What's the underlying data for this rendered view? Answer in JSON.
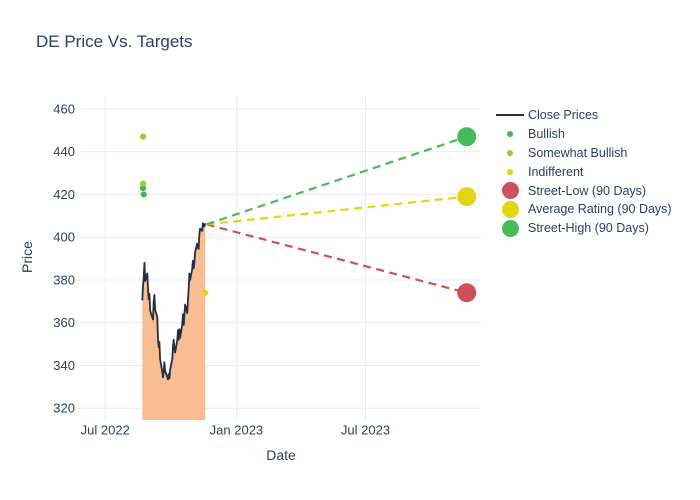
{
  "chart": {
    "title": "DE Price Vs. Targets",
    "xaxis": {
      "title": "Date",
      "tick_labels": [
        "Jul 2022",
        "Jan 2023",
        "Jul 2023"
      ],
      "tick_dates": [
        "2022-07-01",
        "2023-01-01",
        "2023-07-01"
      ],
      "range": [
        "2022-05-28",
        "2023-12-10"
      ]
    },
    "yaxis": {
      "title": "Price",
      "ticks": [
        320,
        340,
        360,
        380,
        400,
        420,
        440,
        460
      ],
      "range": [
        314.5,
        466.5
      ]
    },
    "colors": {
      "background": "#ffffff",
      "grid": "#e8ecf3",
      "text": "#2a3f5f",
      "close_line": "#222f44",
      "close_fill": "#f9bc93",
      "bullish": "#46b552",
      "somewhat_bullish": "#9acd32",
      "indifferent": "#e4d60d",
      "street_low": "#cf4f5c",
      "average_rating": "#ded70f",
      "street_high": "#47bb59"
    },
    "legend": [
      {
        "label": "Close Prices",
        "slug": "close-prices",
        "type": "line",
        "color": "#222f44"
      },
      {
        "label": "Bullish",
        "slug": "bullish",
        "type": "dot",
        "color": "#46b552",
        "size": 6.5
      },
      {
        "label": "Somewhat Bullish",
        "slug": "somewhat-bullish",
        "type": "dot",
        "color": "#9acd32",
        "size": 6.5
      },
      {
        "label": "Indifferent",
        "slug": "indifferent",
        "type": "dot",
        "color": "#e4d60d",
        "size": 6.5
      },
      {
        "label": "Street-Low (90 Days)",
        "slug": "street-low",
        "type": "dot",
        "color": "#cf4f5c",
        "size": 17
      },
      {
        "label": "Average Rating (90 Days)",
        "slug": "average-rating",
        "type": "dot",
        "color": "#ded70f",
        "size": 17
      },
      {
        "label": "Street-High (90 Days)",
        "slug": "street-high",
        "type": "dot",
        "color": "#47bb59",
        "size": 17
      }
    ]
  },
  "chart_data": {
    "type": "line",
    "title": "DE Price Vs. Targets",
    "xlabel": "Date",
    "ylabel": "Price",
    "ylim": [
      314.5,
      466.5
    ],
    "grid": true,
    "legend_position": "right",
    "close_prices": {
      "name": "Close Prices",
      "dates": [
        "2022-08-22",
        "2022-08-23",
        "2022-08-24",
        "2022-08-25",
        "2022-08-26",
        "2022-08-29",
        "2022-08-30",
        "2022-08-31",
        "2022-09-01",
        "2022-09-02",
        "2022-09-06",
        "2022-09-07",
        "2022-09-08",
        "2022-09-09",
        "2022-09-12",
        "2022-09-13",
        "2022-09-14",
        "2022-09-15",
        "2022-09-16",
        "2022-09-19",
        "2022-09-20",
        "2022-09-21",
        "2022-09-22",
        "2022-09-23",
        "2022-09-26",
        "2022-09-27",
        "2022-09-28",
        "2022-09-29",
        "2022-09-30",
        "2022-10-03",
        "2022-10-04",
        "2022-10-05",
        "2022-10-06",
        "2022-10-07",
        "2022-10-10",
        "2022-10-11",
        "2022-10-12",
        "2022-10-13",
        "2022-10-14",
        "2022-10-17",
        "2022-10-18",
        "2022-10-19",
        "2022-10-20",
        "2022-10-21",
        "2022-10-24",
        "2022-10-25",
        "2022-10-26",
        "2022-10-27",
        "2022-10-28",
        "2022-10-31",
        "2022-11-01",
        "2022-11-02",
        "2022-11-03",
        "2022-11-04",
        "2022-11-07",
        "2022-11-08",
        "2022-11-09",
        "2022-11-10",
        "2022-11-11",
        "2022-11-14",
        "2022-11-15",
        "2022-11-16",
        "2022-11-17",
        "2022-11-18"
      ],
      "values": [
        370.5,
        377,
        381,
        388,
        379.5,
        383,
        376,
        371,
        373.5,
        365.5,
        361.5,
        370,
        373,
        366,
        362.5,
        352.5,
        348.5,
        351,
        343,
        337,
        334.5,
        337,
        341.5,
        337.5,
        334.5,
        333.5,
        336,
        334,
        338,
        343,
        349,
        352,
        348,
        346,
        352,
        356.5,
        352,
        357,
        353,
        359,
        364,
        359,
        363.5,
        368.5,
        364.5,
        371,
        376,
        383,
        380,
        385,
        389,
        385.5,
        388,
        393,
        397,
        395,
        394.5,
        401.5,
        404,
        403,
        406.5,
        405.5,
        405,
        406.5
      ]
    },
    "ratings": [
      {
        "name": "Bullish",
        "slug": "bullish",
        "color": "#46b552",
        "points": [
          {
            "date": "2022-08-23",
            "price": 423
          },
          {
            "date": "2022-08-24",
            "price": 420
          }
        ]
      },
      {
        "name": "Somewhat Bullish",
        "slug": "somewhat-bullish",
        "color": "#9acd32",
        "points": [
          {
            "date": "2022-08-23",
            "price": 447
          },
          {
            "date": "2022-08-23",
            "price": 425
          }
        ]
      },
      {
        "name": "Indifferent",
        "slug": "indifferent",
        "color": "#e4d60d",
        "points": [
          {
            "date": "2022-11-18",
            "price": 374
          }
        ]
      }
    ],
    "targets": {
      "anchor": {
        "date": "2022-11-20",
        "price": 406
      },
      "target_date": "2023-11-20",
      "series": [
        {
          "name": "Street-Low (90 Days)",
          "slug": "street-low",
          "price": 374,
          "color": "#cf4f5c"
        },
        {
          "name": "Average Rating (90 Days)",
          "slug": "average-rating",
          "price": 419,
          "color": "#ded70f"
        },
        {
          "name": "Street-High (90 Days)",
          "slug": "street-high",
          "price": 447,
          "color": "#47bb59"
        }
      ]
    }
  }
}
